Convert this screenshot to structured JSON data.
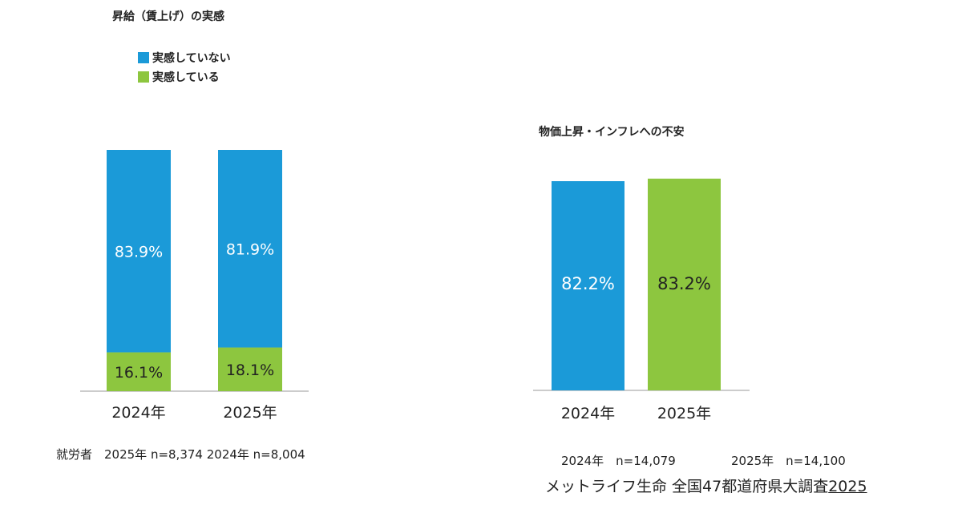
{
  "chart_data": [
    {
      "type": "bar",
      "stacked": true,
      "title": "昇給（賃上げ）の実感",
      "categories": [
        "2024年",
        "2025年"
      ],
      "series": [
        {
          "name": "実感していない",
          "values": [
            83.9,
            81.9
          ],
          "labels": [
            "83.9%",
            "81.9%"
          ],
          "color": "#1b9ad8"
        },
        {
          "name": "実感している",
          "values": [
            16.1,
            18.1
          ],
          "labels": [
            "16.1%",
            "18.1%"
          ],
          "color": "#8dc63f"
        }
      ],
      "ylim": [
        0,
        100
      ],
      "legend_position": "top-left",
      "grid": false,
      "note": "就労者　2025年 n=8,374  2024年 n=8,004"
    },
    {
      "type": "bar",
      "title": "物価上昇・インフレへの不安",
      "categories": [
        "2024年",
        "2025年"
      ],
      "values": [
        82.2,
        83.2
      ],
      "labels": [
        "82.2%",
        "83.2%"
      ],
      "colors": [
        "#1b9ad8",
        "#8dc63f"
      ],
      "ylim": [
        0,
        100
      ],
      "grid": false,
      "notes": [
        "2024年　n=14,079",
        "2025年　n=14,100"
      ]
    }
  ],
  "source": {
    "text": "メットライフ生命 全国47都道府県大調査",
    "year": "2025"
  }
}
